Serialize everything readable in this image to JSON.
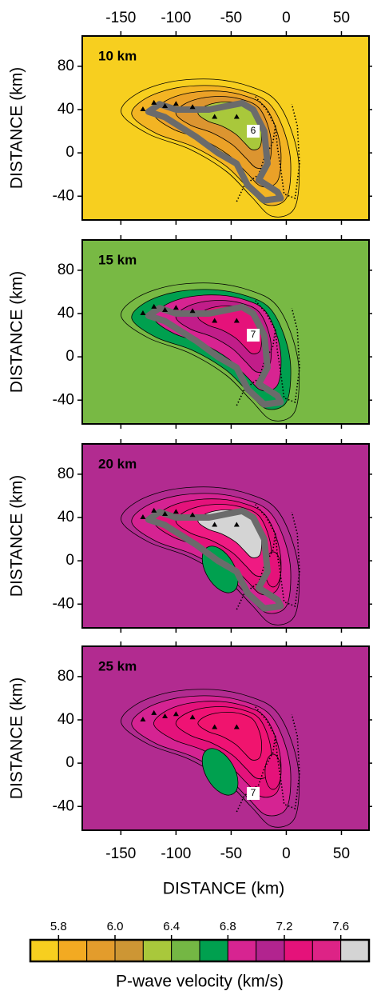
{
  "chart_data": {
    "type": "map-panels",
    "xlabel": "DISTANCE (km)",
    "ylabel": "DISTANCE (km)",
    "xlim": [
      -185,
      75
    ],
    "ylim": [
      -62,
      108
    ],
    "xticks": [
      -150,
      -100,
      -50,
      0,
      50
    ],
    "yticks": [
      80,
      40,
      0,
      -40
    ],
    "panels": [
      {
        "label": "10 km",
        "background": "#f7cf1f",
        "contour_colors": [
          "#f3b423",
          "#eba127",
          "#dc9530",
          "#a9c83b"
        ],
        "contour_label": "6",
        "outline": true
      },
      {
        "label": "15 km",
        "background": "#78b944",
        "contour_colors": [
          "#00a04f",
          "#d72491",
          "#c11d89",
          "#e5127a"
        ],
        "contour_label": "7",
        "outline": true
      },
      {
        "label": "20 km",
        "background": "#b22b90",
        "contour_colors": [
          "#d52392",
          "#e4127b",
          "#ef1a82",
          "#d4d4d4"
        ],
        "secondary_color": "#00a04f",
        "outline": true
      },
      {
        "label": "25 km",
        "background": "#b22b90",
        "contour_colors": [
          "#d52392",
          "#e4127b",
          "#ef1274",
          "#f0146e"
        ],
        "secondary_color": "#00a04f",
        "contour_label": "7",
        "outline": false
      }
    ],
    "colorbar": {
      "title": "P-wave velocity (km/s)",
      "colors": [
        "#f7cf1f",
        "#f3aa22",
        "#e39c2c",
        "#cd9634",
        "#a9c83b",
        "#74b744",
        "#00a04f",
        "#d72491",
        "#b2248f",
        "#e5127a",
        "#dd2386",
        "#d4d4d4"
      ],
      "levels": [
        5.7,
        5.8,
        5.9,
        6.0,
        6.2,
        6.4,
        6.6,
        6.8,
        7.0,
        7.2,
        7.4,
        7.6,
        7.8
      ],
      "ticks": [
        5.8,
        {
          "value": 6,
          "label": "6.0"
        },
        6.4,
        6.8,
        7.2,
        7.6
      ]
    }
  }
}
